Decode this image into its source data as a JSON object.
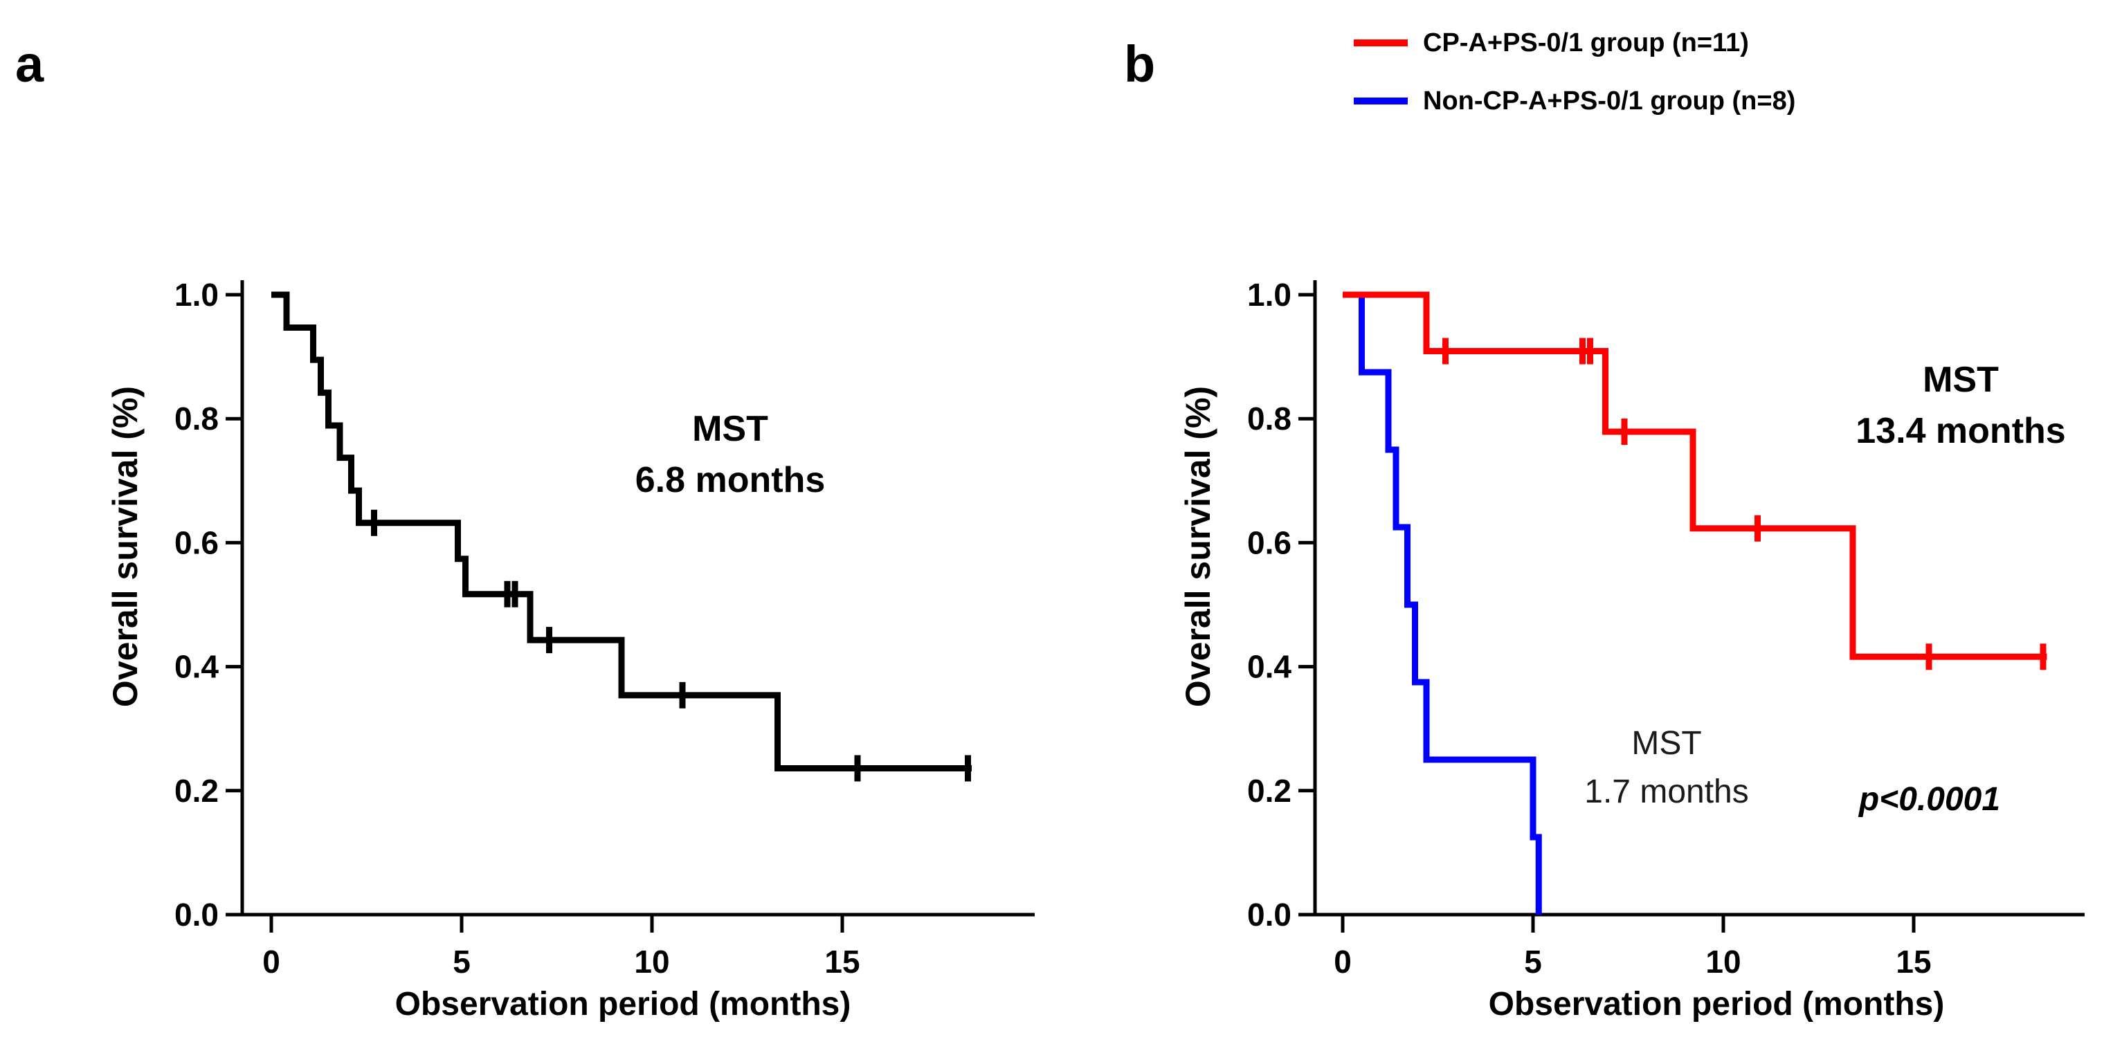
{
  "figure": {
    "panel_a_letter": "a",
    "panel_b_letter": "b"
  },
  "legend": {
    "items": [
      {
        "label": "CP-A+PS-0/1 group (n=11)",
        "color": "#ff0000"
      },
      {
        "label": "Non-CP-A+PS-0/1 group (n=8)",
        "color": "#0000ff"
      }
    ]
  },
  "chart_data": [
    {
      "panel": "a",
      "type": "line",
      "variant": "kaplan-meier-step",
      "xlabel": "Observation period (months)",
      "ylabel": "Overall survival (%)",
      "x_ticks": [
        0,
        5,
        10,
        15
      ],
      "y_ticks": [
        1.0,
        0.8,
        0.6,
        0.4,
        0.2,
        0.0
      ],
      "y_tick_labels": [
        "1.0",
        "0.8",
        "0.6",
        "0.4",
        "0.2",
        "0.0"
      ],
      "xlim": [
        0,
        19.5
      ],
      "ylim": [
        0,
        1.05
      ],
      "grid": false,
      "annotation": {
        "line1": "MST",
        "line2": "6.8 months"
      },
      "series": [
        {
          "color": "#000000",
          "steps": [
            [
              0,
              1.0
            ],
            [
              0.4,
              0.947
            ],
            [
              1.1,
              0.895
            ],
            [
              1.3,
              0.842
            ],
            [
              1.5,
              0.789
            ],
            [
              1.8,
              0.737
            ],
            [
              2.1,
              0.684
            ],
            [
              2.3,
              0.632
            ],
            [
              4.9,
              0.574
            ],
            [
              5.1,
              0.517
            ],
            [
              6.8,
              0.443
            ],
            [
              9.2,
              0.354
            ],
            [
              13.3,
              0.236
            ],
            [
              18.4,
              0.236
            ]
          ],
          "censor_marks": [
            [
              2.7,
              0.632
            ],
            [
              6.2,
              0.517
            ],
            [
              6.4,
              0.517
            ],
            [
              7.3,
              0.443
            ],
            [
              10.8,
              0.354
            ],
            [
              15.4,
              0.236
            ],
            [
              18.3,
              0.236
            ]
          ]
        }
      ]
    },
    {
      "panel": "b",
      "type": "line",
      "variant": "kaplan-meier-step",
      "xlabel": "Observation period (months)",
      "ylabel": "Overall survival (%)",
      "x_ticks": [
        0,
        5,
        10,
        15
      ],
      "y_ticks": [
        1.0,
        0.8,
        0.6,
        0.4,
        0.2,
        0.0
      ],
      "y_tick_labels": [
        "1.0",
        "0.8",
        "0.6",
        "0.4",
        "0.2",
        "0.0"
      ],
      "xlim": [
        0,
        19.5
      ],
      "ylim": [
        0,
        1.05
      ],
      "grid": false,
      "annotation_red": {
        "line1": "MST",
        "line2": "13.4 months"
      },
      "annotation_blue": {
        "line1": "MST",
        "line2": "1.7 months"
      },
      "p_value": "p<0.0001",
      "series": [
        {
          "name": "CP-A+PS-0/1 group (n=11)",
          "color": "#ff0000",
          "steps": [
            [
              0,
              1.0
            ],
            [
              2.2,
              0.909
            ],
            [
              6.9,
              0.779
            ],
            [
              9.2,
              0.623
            ],
            [
              13.4,
              0.416
            ],
            [
              18.5,
              0.416
            ]
          ],
          "censor_marks": [
            [
              2.7,
              0.909
            ],
            [
              6.3,
              0.909
            ],
            [
              6.5,
              0.909
            ],
            [
              7.4,
              0.779
            ],
            [
              10.9,
              0.623
            ],
            [
              15.4,
              0.416
            ],
            [
              18.4,
              0.416
            ]
          ]
        },
        {
          "name": "Non-CP-A+PS-0/1 group (n=8)",
          "color": "#0000ff",
          "steps": [
            [
              0.3,
              1.0
            ],
            [
              0.5,
              0.875
            ],
            [
              1.2,
              0.75
            ],
            [
              1.4,
              0.625
            ],
            [
              1.7,
              0.5
            ],
            [
              1.9,
              0.375
            ],
            [
              2.2,
              0.25
            ],
            [
              5.0,
              0.125
            ],
            [
              5.15,
              0.0
            ]
          ],
          "censor_marks": []
        }
      ]
    }
  ]
}
